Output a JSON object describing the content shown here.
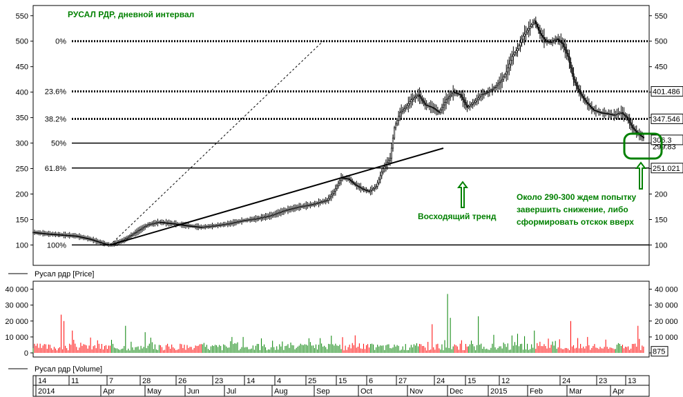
{
  "chart_data": [
    {
      "type": "candlestick",
      "title": "РУСАЛ РДР, дневной интервал",
      "series_caption": "Русал рдр [Price]",
      "ylim": [
        60,
        570
      ],
      "yticks": [
        100,
        150,
        200,
        250,
        300,
        350,
        400,
        450,
        500,
        550
      ],
      "fib_levels": [
        {
          "label": "0%",
          "value": 500,
          "style": "dotted"
        },
        {
          "label": "23.6%",
          "value": 401.486,
          "style": "dotted",
          "badge": "401.486"
        },
        {
          "label": "38.2%",
          "value": 347.546,
          "style": "dotted",
          "badge": "347.546"
        },
        {
          "label": "50%",
          "value": 300,
          "style": "solid"
        },
        {
          "label": "61.8%",
          "value": 251.021,
          "style": "solid",
          "badge": "251.021"
        },
        {
          "label": "100%",
          "value": 100,
          "style": "solid"
        }
      ],
      "last_price_badge": "306.3",
      "last_price_badge_overlap": "299.83",
      "trendline": {
        "from": {
          "x": 55,
          "y": 100
        },
        "to": {
          "x": 293,
          "y": 290
        }
      },
      "fib_diagonal": {
        "from": {
          "x": 55,
          "y": 100
        },
        "to": {
          "x": 207,
          "y": 500
        }
      },
      "price_path": [
        [
          0,
          125
        ],
        [
          10,
          122
        ],
        [
          20,
          120
        ],
        [
          30,
          118
        ],
        [
          40,
          112
        ],
        [
          50,
          103
        ],
        [
          55,
          100
        ],
        [
          65,
          110
        ],
        [
          75,
          128
        ],
        [
          82,
          140
        ],
        [
          90,
          145
        ],
        [
          100,
          142
        ],
        [
          110,
          138
        ],
        [
          120,
          135
        ],
        [
          130,
          138
        ],
        [
          140,
          142
        ],
        [
          150,
          148
        ],
        [
          160,
          152
        ],
        [
          170,
          158
        ],
        [
          180,
          168
        ],
        [
          190,
          175
        ],
        [
          200,
          180
        ],
        [
          210,
          188
        ],
        [
          215,
          205
        ],
        [
          220,
          232
        ],
        [
          225,
          230
        ],
        [
          230,
          218
        ],
        [
          235,
          210
        ],
        [
          240,
          205
        ],
        [
          245,
          215
        ],
        [
          250,
          250
        ],
        [
          255,
          270
        ],
        [
          258,
          330
        ],
        [
          262,
          360
        ],
        [
          266,
          370
        ],
        [
          270,
          385
        ],
        [
          275,
          395
        ],
        [
          280,
          375
        ],
        [
          285,
          370
        ],
        [
          290,
          360
        ],
        [
          295,
          385
        ],
        [
          300,
          400
        ],
        [
          305,
          395
        ],
        [
          310,
          370
        ],
        [
          315,
          380
        ],
        [
          320,
          395
        ],
        [
          325,
          400
        ],
        [
          330,
          410
        ],
        [
          335,
          425
        ],
        [
          338,
          440
        ],
        [
          342,
          470
        ],
        [
          346,
          485
        ],
        [
          350,
          510
        ],
        [
          354,
          525
        ],
        [
          358,
          540
        ],
        [
          362,
          515
        ],
        [
          366,
          500
        ],
        [
          370,
          498
        ],
        [
          374,
          505
        ],
        [
          378,
          495
        ],
        [
          382,
          470
        ],
        [
          386,
          425
        ],
        [
          390,
          400
        ],
        [
          395,
          380
        ],
        [
          400,
          365
        ],
        [
          405,
          360
        ],
        [
          410,
          358
        ],
        [
          415,
          355
        ],
        [
          420,
          360
        ],
        [
          424,
          350
        ],
        [
          428,
          330
        ],
        [
          432,
          318
        ],
        [
          436,
          310
        ]
      ],
      "volume_peaks": [
        {
          "x": 20,
          "v": 24000
        },
        {
          "x": 22,
          "v": 20000
        },
        {
          "x": 28,
          "v": 14000
        },
        {
          "x": 66,
          "v": 17000
        },
        {
          "x": 80,
          "v": 13000
        },
        {
          "x": 150,
          "v": 10000
        },
        {
          "x": 230,
          "v": 11000
        },
        {
          "x": 285,
          "v": 18000
        },
        {
          "x": 296,
          "v": 37000
        },
        {
          "x": 298,
          "v": 22000
        },
        {
          "x": 318,
          "v": 23000
        },
        {
          "x": 346,
          "v": 12000
        },
        {
          "x": 358,
          "v": 14000
        },
        {
          "x": 384,
          "v": 20000
        },
        {
          "x": 396,
          "v": 10000
        },
        {
          "x": 432,
          "v": 17000
        }
      ]
    },
    {
      "type": "bar",
      "series_caption": "Русал рдр [Volume]",
      "ylim": [
        0,
        45000
      ],
      "yticks": [
        {
          "value": 0,
          "label": "0"
        },
        {
          "value": 10000,
          "label": "10 000"
        },
        {
          "value": 20000,
          "label": "20 000"
        },
        {
          "value": 30000,
          "label": "30 000"
        },
        {
          "value": 40000,
          "label": "40 000"
        }
      ],
      "last_volume_badge": "875"
    }
  ],
  "annotations": {
    "uptrend": "Восходящий тренд",
    "note_line1": "Около 290-300 ждем попытку",
    "note_line2": "завершить снижение, либо",
    "note_line3": "сформировать отскок вверх"
  },
  "time_axis": {
    "days": [
      "14",
      "11",
      "7",
      "28",
      "26",
      "23",
      "14",
      "4",
      "25",
      "15",
      "6",
      "27",
      "24",
      "15",
      "12",
      "24",
      "23",
      "13"
    ],
    "months": [
      "2014",
      "Apr",
      "May",
      "Jun",
      "Jul",
      "Aug",
      "Sep",
      "Oct",
      "Nov",
      "Dec",
      "2015",
      "Feb",
      "Mar",
      "Apr"
    ]
  },
  "colors": {
    "up": "#008000",
    "down": "#ff0000",
    "candle": "#000000",
    "annotation": "#008000",
    "highlight_box": "#008000"
  }
}
